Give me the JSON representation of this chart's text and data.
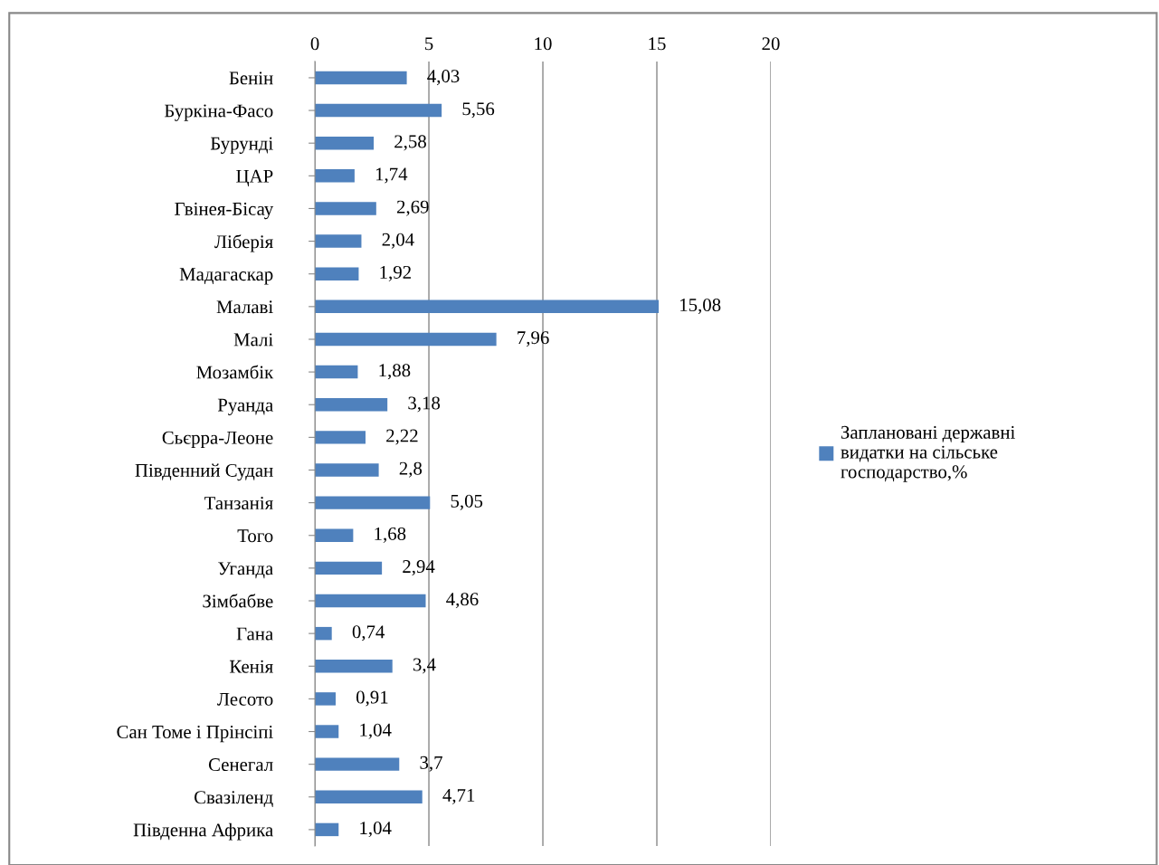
{
  "chart_data": {
    "type": "bar",
    "orientation": "horizontal",
    "categories": [
      "Бенін",
      "Буркіна-Фасо",
      "Бурунді",
      "ЦАР",
      "Гвінея-Бісау",
      "Ліберія",
      "Мадагаскар",
      "Малаві",
      "Малі",
      "Мозамбік",
      "Руанда",
      "Сьєрра-Леоне",
      "Південний Судан",
      "Танзанія",
      "Того",
      "Уганда",
      "Зімбабве",
      "Гана",
      "Кенія",
      "Лесото",
      "Сан Томе і Прінсіпі",
      "Сенегал",
      "Свазіленд",
      "Південна Африка"
    ],
    "series": [
      {
        "name": "Заплановані державні видатки на сільське господарство,%",
        "color": "#4f81bd",
        "values": [
          4.03,
          5.56,
          2.58,
          1.74,
          2.69,
          2.04,
          1.92,
          15.08,
          7.96,
          1.88,
          3.18,
          2.22,
          2.8,
          5.05,
          1.68,
          2.94,
          4.86,
          0.74,
          3.4,
          0.91,
          1.04,
          3.7,
          4.71,
          1.04
        ],
        "value_labels": [
          "4,03",
          "5,56",
          "2,58",
          "1,74",
          "2,69",
          "2,04",
          "1,92",
          "15,08",
          "7,96",
          "1,88",
          "3,18",
          "2,22",
          "2,8",
          "5,05",
          "1,68",
          "2,94",
          "4,86",
          "0,74",
          "3,4",
          "0,91",
          "1,04",
          "3,7",
          "4,71",
          "1,04"
        ]
      }
    ],
    "xlim": [
      0,
      20
    ],
    "xticks": [
      0,
      5,
      10,
      15,
      20
    ],
    "grid": "x",
    "legend": "right"
  }
}
